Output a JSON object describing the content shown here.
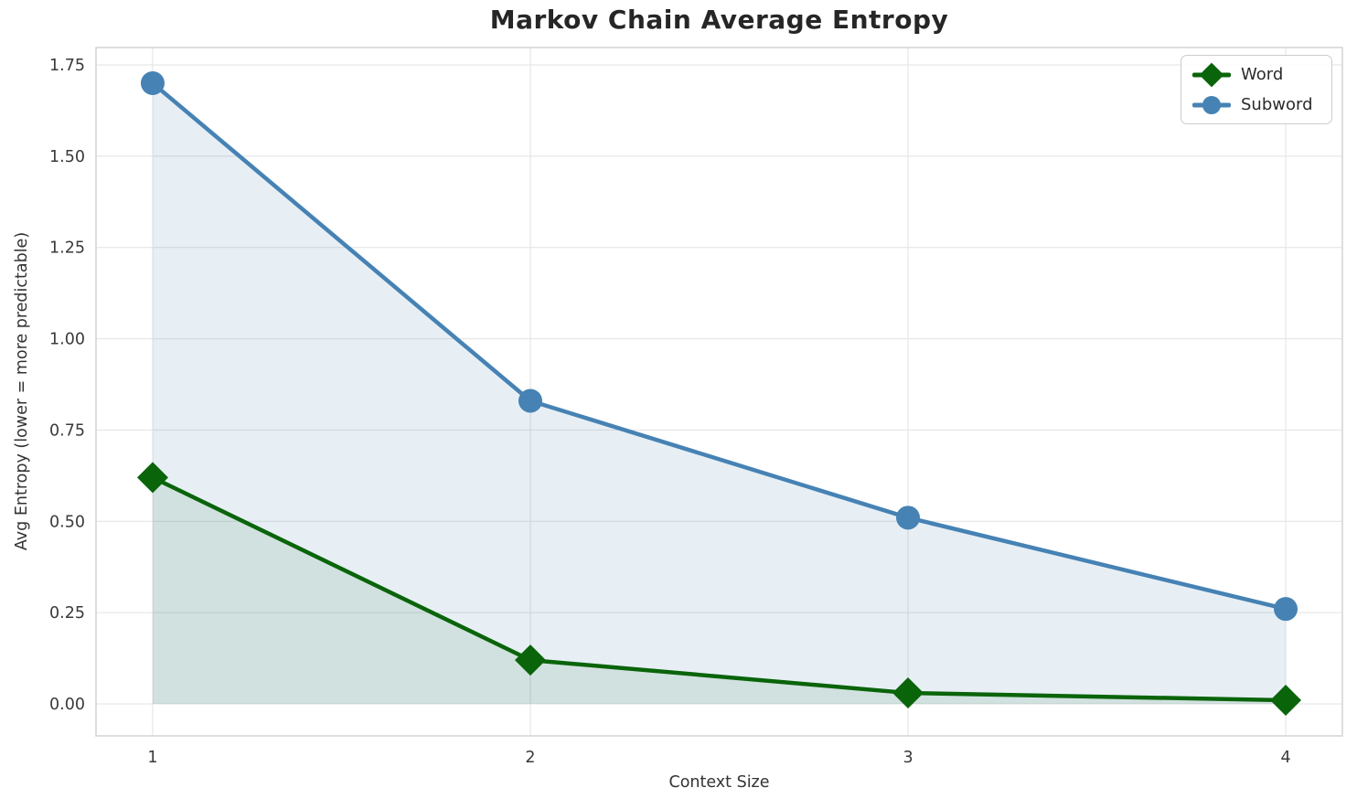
{
  "chart_data": {
    "type": "line",
    "title": "Markov Chain Average Entropy",
    "xlabel": "Context Size",
    "ylabel": "Avg Entropy (lower = more predictable)",
    "x": [
      1,
      2,
      3,
      4
    ],
    "series": [
      {
        "name": "Word",
        "values": [
          0.62,
          0.12,
          0.03,
          0.01
        ],
        "color": "#0a640a",
        "marker": "diamond",
        "fill_to_zero": true,
        "fill_opacity": 0.1
      },
      {
        "name": "Subword",
        "values": [
          1.7,
          0.83,
          0.51,
          0.26
        ],
        "color": "#4682b4",
        "marker": "circle",
        "fill_to_zero": true,
        "fill_opacity": 0.13
      }
    ],
    "x_ticks": [
      {
        "v": 1,
        "label": "1"
      },
      {
        "v": 2,
        "label": "2"
      },
      {
        "v": 3,
        "label": "3"
      },
      {
        "v": 4,
        "label": "4"
      }
    ],
    "y_ticks": [
      {
        "v": 0.0,
        "label": "0.00"
      },
      {
        "v": 0.25,
        "label": "0.25"
      },
      {
        "v": 0.5,
        "label": "0.50"
      },
      {
        "v": 0.75,
        "label": "0.75"
      },
      {
        "v": 1.0,
        "label": "1.00"
      },
      {
        "v": 1.25,
        "label": "1.25"
      },
      {
        "v": 1.5,
        "label": "1.50"
      },
      {
        "v": 1.75,
        "label": "1.75"
      }
    ],
    "xlim": [
      0.85,
      4.15
    ],
    "ylim": [
      -0.0875,
      1.7975
    ],
    "grid": true,
    "legend_position": "upper right",
    "colors": {
      "grid": "#e6e6e6",
      "spine": "#d4d4d4",
      "tick_text": "#3a3a3a",
      "title_text": "#262626"
    }
  }
}
